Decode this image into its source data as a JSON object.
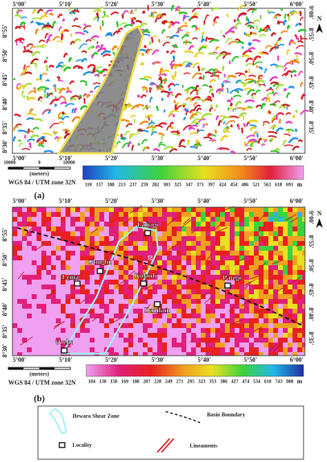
{
  "panels": [
    {
      "label": "(a)",
      "top_ticks": [
        "5°00'",
        "5°10'",
        "5°20'",
        "5°30'",
        "5°40'",
        "5°50'",
        "6°00'"
      ],
      "bottom_ticks": [
        "5°00'",
        "5°10'",
        "5°20'",
        "5°30'",
        "5°40'",
        "5°50'",
        "6°00'"
      ],
      "left_ticks": [
        "8°55'",
        "8°50'",
        "8°45'",
        "8°40'",
        "8°35'",
        "8°30'"
      ],
      "right_ticks": [
        "9°00'",
        "8°55'",
        "8°50'",
        "8°45'",
        "8°40'",
        "8°35'"
      ],
      "colorbar": {
        "values": [
          110,
          157,
          188,
          213,
          237,
          259,
          282,
          303,
          325,
          347,
          371,
          397,
          424,
          454,
          486,
          521,
          563,
          618,
          691
        ],
        "unit": "m"
      },
      "scale": {
        "ticks": [
          10000,
          0,
          10000
        ],
        "unit": "(meters)"
      },
      "crs": "WGS 84 / UTM zone 32N"
    },
    {
      "label": "(b)",
      "top_ticks": [
        "5°00'",
        "5°10'",
        "5°20'",
        "5°30'",
        "5°40'",
        "5°50'",
        "6°00'"
      ],
      "bottom_ticks": [
        "5°00'",
        "5°10'",
        "5°20'",
        "5°30'",
        "5°40'",
        "5°50'",
        "6°00'"
      ],
      "left_ticks": [
        "8°55'",
        "8°50'",
        "8°45'",
        "8°40'",
        "8°35'",
        "8°30'"
      ],
      "right_ticks": [
        "9°00'",
        "8°55'",
        "8°50'",
        "8°45'",
        "8°40'",
        "8°35'"
      ],
      "colorbar": {
        "values": [
          104,
          130,
          150,
          169,
          188,
          207,
          228,
          249,
          271,
          295,
          323,
          353,
          386,
          427,
          474,
          534,
          618,
          743,
          988
        ],
        "unit": "m"
      },
      "scale": {
        "unit": "(meters)"
      },
      "crs": "WGS 84 / UTM zone 32N",
      "localities": [
        "Lafiagi",
        "Gbugbu",
        "Lema",
        "Kokodo",
        "Pategi",
        "Danikun",
        "Oreke"
      ]
    }
  ],
  "legend": {
    "items": [
      "Ifewara Shear Zone",
      "Basin Boundary",
      "Locality",
      "Lineaments"
    ]
  }
}
